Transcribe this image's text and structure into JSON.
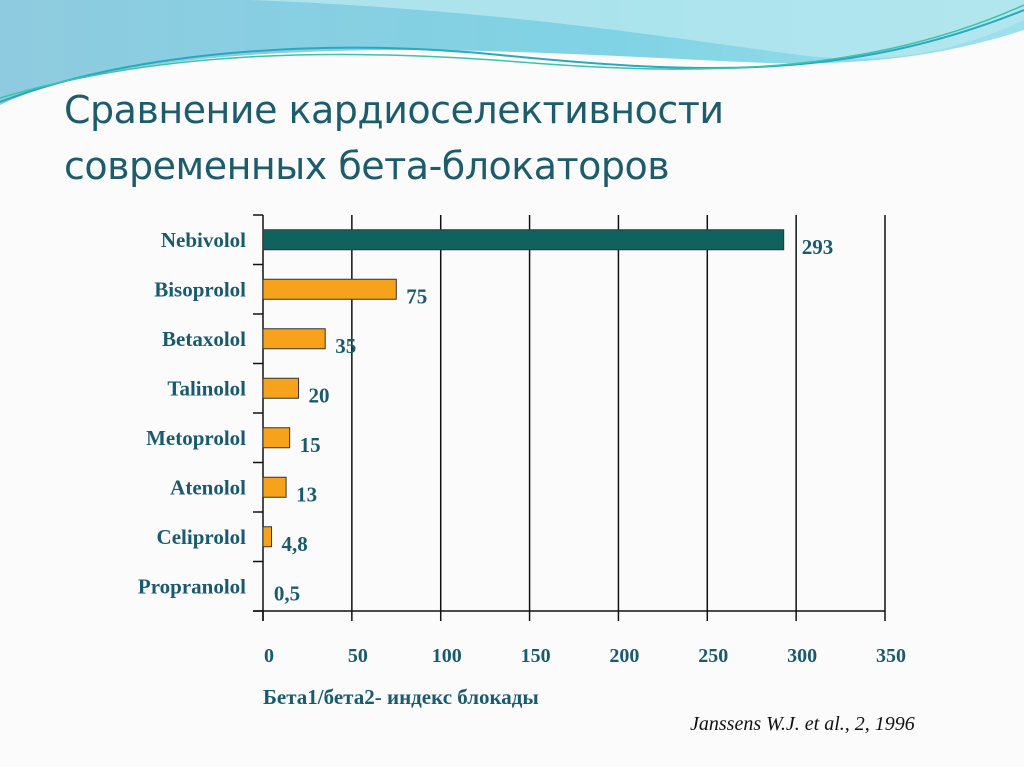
{
  "slide": {
    "title_lines": [
      "Сравнение кардиоселективности",
      "современных бета-блокаторов"
    ],
    "source": "Janssens W.J. et al., 2, 1996"
  },
  "colors": {
    "highlight_bar": "#11625f",
    "bar": "#f7a21b",
    "text": "#1a5a6e"
  },
  "chart_data": {
    "type": "bar",
    "orientation": "horizontal",
    "categories": [
      "Nebivolol",
      "Bisoprolol",
      "Betaxolol",
      "Talinolol",
      "Metoprolol",
      "Atenolol",
      "Celiprolol",
      "Propranolol"
    ],
    "values": [
      293,
      75,
      35,
      20,
      15,
      13,
      4.8,
      0.5
    ],
    "value_labels": [
      "293",
      "75",
      "35",
      "20",
      "15",
      "13",
      "4,8",
      "0,5"
    ],
    "xlabel": "Бета1/бета2- индекс блокады",
    "xlim": [
      0,
      350
    ],
    "xticks": [
      0,
      50,
      100,
      150,
      200,
      250,
      300,
      350
    ],
    "grid": "vertical",
    "highlighted_category": "Nebivolol"
  }
}
